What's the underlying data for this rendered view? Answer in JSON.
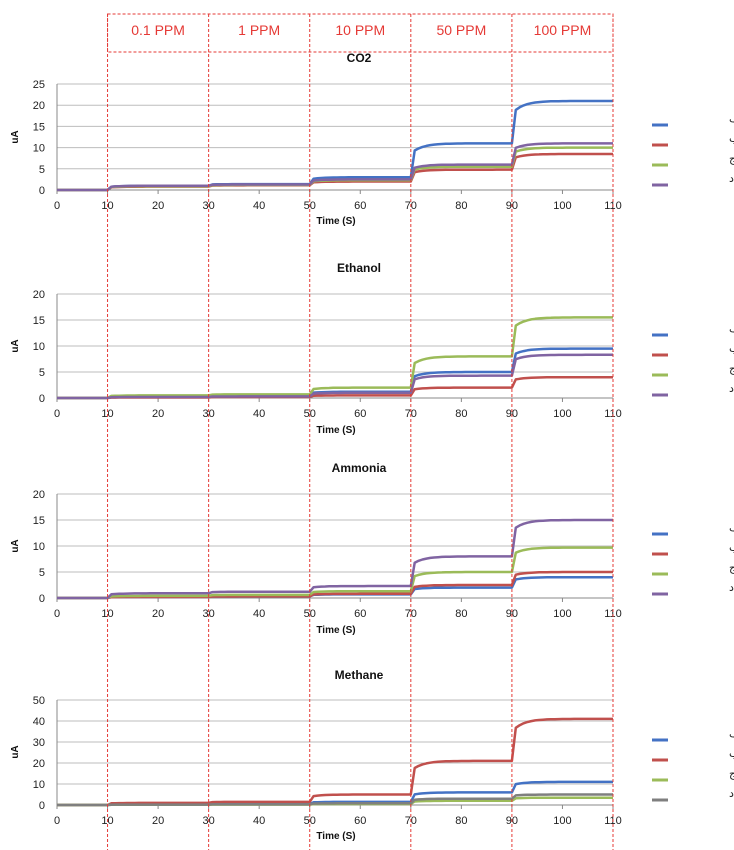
{
  "ppm_labels": [
    "0.1 PPM",
    "1 PPM",
    "10 PPM",
    "50 PPM",
    "100 PPM"
  ],
  "colors": {
    "series": [
      "#4472c4",
      "#c0504d",
      "#9bbb59",
      "#8064a2"
    ],
    "methane_series": [
      "#4472c4",
      "#c0504d",
      "#9bbb59",
      "#7f7f7f"
    ],
    "grid": "#bdbdbd",
    "axis": "#888888",
    "ppm": "#e53935"
  },
  "chart_data": [
    {
      "type": "line",
      "title": "CO2",
      "xlabel": "Time (S)",
      "ylabel": "uA",
      "x_ticks": [
        0,
        10,
        20,
        30,
        40,
        50,
        60,
        70,
        80,
        90,
        100,
        110
      ],
      "y_ticks": [
        0,
        5,
        10,
        15,
        20,
        25
      ],
      "xlim": [
        0,
        110
      ],
      "ylim": [
        0,
        25
      ],
      "step_times": [
        10,
        30,
        50,
        70,
        90
      ],
      "grid": true,
      "legend_position": "right",
      "series": [
        {
          "name": "قسمت الف",
          "levels": [
            0,
            1,
            1.4,
            3,
            11,
            21
          ]
        },
        {
          "name": "قسمت ب",
          "levels": [
            0,
            0.8,
            1.1,
            2,
            4.8,
            8.5
          ]
        },
        {
          "name": "قسمت ج",
          "levels": [
            0,
            0.9,
            1.2,
            2.3,
            5.5,
            10
          ]
        },
        {
          "name": "قسمت د",
          "levels": [
            0,
            1,
            1.3,
            2.5,
            6,
            11
          ]
        }
      ]
    },
    {
      "type": "line",
      "title": "Ethanol",
      "xlabel": "Time (S)",
      "ylabel": "uA",
      "x_ticks": [
        0,
        10,
        20,
        30,
        40,
        50,
        60,
        70,
        80,
        90,
        100,
        110
      ],
      "y_ticks": [
        0,
        5,
        10,
        15,
        20
      ],
      "xlim": [
        0,
        110
      ],
      "ylim": [
        0,
        20
      ],
      "step_times": [
        10,
        30,
        50,
        70,
        90
      ],
      "grid": true,
      "legend_position": "right",
      "series": [
        {
          "name": "قسمت الف",
          "levels": [
            0,
            0.3,
            0.4,
            1.2,
            5,
            9.5
          ]
        },
        {
          "name": "قسمت ب",
          "levels": [
            0,
            0.1,
            0.2,
            0.5,
            2,
            4
          ]
        },
        {
          "name": "قسمت ج",
          "levels": [
            0,
            0.5,
            0.7,
            2,
            8,
            15.5
          ]
        },
        {
          "name": "قسمت د",
          "levels": [
            0,
            0.2,
            0.3,
            1,
            4.3,
            8.3
          ]
        }
      ]
    },
    {
      "type": "line",
      "title": "Ammonia",
      "xlabel": "Time (S)",
      "ylabel": "uA",
      "x_ticks": [
        0,
        10,
        20,
        30,
        40,
        50,
        60,
        70,
        80,
        90,
        100,
        110
      ],
      "y_ticks": [
        0,
        5,
        10,
        15,
        20
      ],
      "xlim": [
        0,
        110
      ],
      "ylim": [
        0,
        20
      ],
      "step_times": [
        10,
        30,
        50,
        70,
        90
      ],
      "grid": true,
      "legend_position": "right",
      "series": [
        {
          "name": "قسمت الف",
          "levels": [
            0,
            0.2,
            0.3,
            0.7,
            2,
            4
          ]
        },
        {
          "name": "قسمت ب",
          "levels": [
            0,
            0.2,
            0.3,
            0.8,
            2.5,
            5
          ]
        },
        {
          "name": "قسمت ج",
          "levels": [
            0,
            0.4,
            0.6,
            1.3,
            5,
            9.7
          ]
        },
        {
          "name": "قسمت د",
          "levels": [
            0,
            0.9,
            1.2,
            2.3,
            8,
            15
          ]
        }
      ]
    },
    {
      "type": "line",
      "title": "Methane",
      "xlabel": "Time (S)",
      "ylabel": "uA",
      "x_ticks": [
        0,
        10,
        20,
        30,
        40,
        50,
        60,
        70,
        80,
        90,
        100,
        110
      ],
      "y_ticks": [
        0,
        10,
        20,
        30,
        40,
        50
      ],
      "xlim": [
        0,
        110
      ],
      "ylim": [
        0,
        50
      ],
      "step_times": [
        10,
        30,
        50,
        70,
        90
      ],
      "grid": true,
      "legend_position": "right",
      "series": [
        {
          "name": "قسمت الف",
          "levels": [
            0,
            0.3,
            0.5,
            1.5,
            6,
            11
          ]
        },
        {
          "name": "قسمت ب",
          "levels": [
            0,
            1,
            1.5,
            5,
            21,
            41
          ]
        },
        {
          "name": "قسمت ج",
          "levels": [
            0,
            0.1,
            0.2,
            0.5,
            2,
            3.5
          ]
        },
        {
          "name": "قسمت د",
          "levels": [
            0,
            0.2,
            0.3,
            0.8,
            3,
            5
          ]
        }
      ]
    }
  ]
}
